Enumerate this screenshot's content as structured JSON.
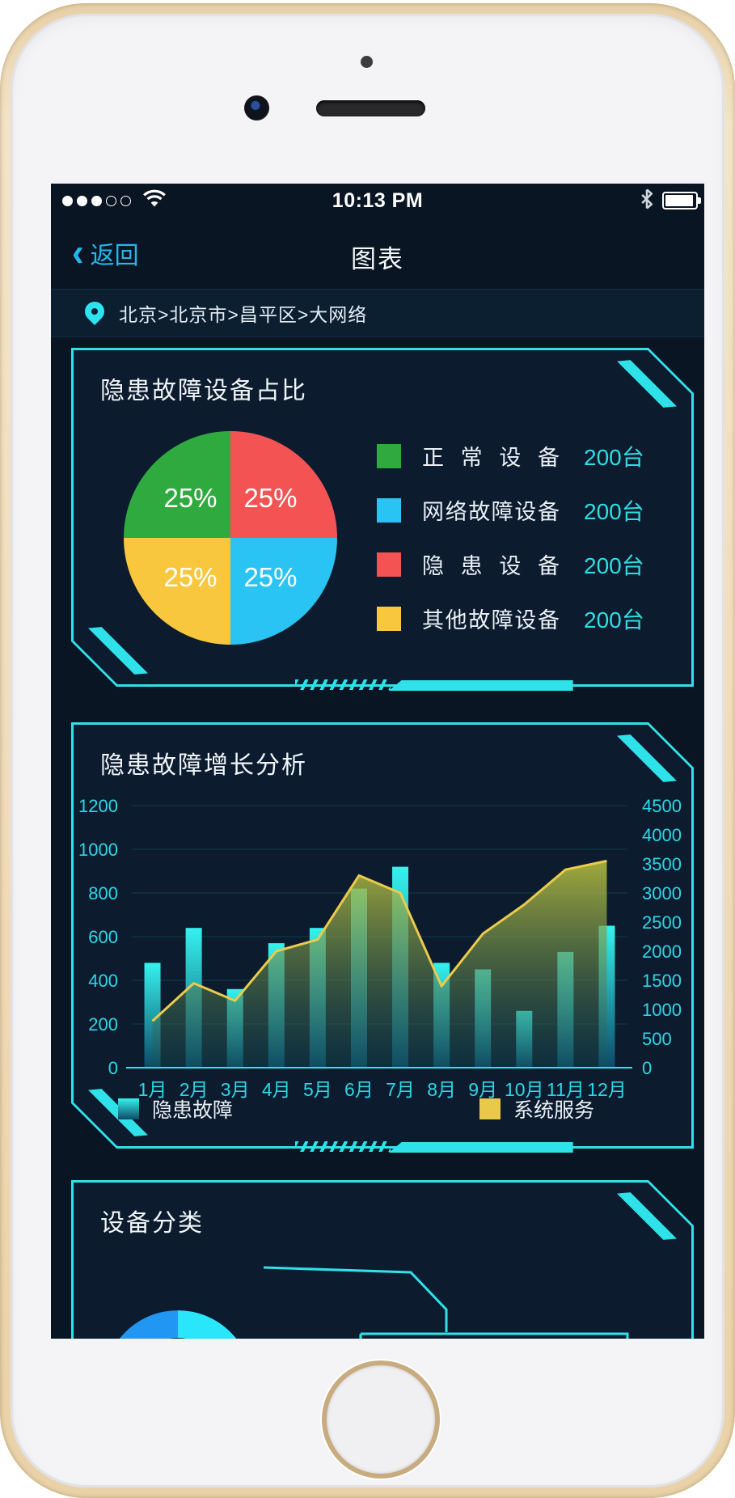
{
  "status_bar": {
    "time": "10:13 PM",
    "signal_icon": "cellular-signal-3-of-5-dots",
    "wifi_icon": "wifi-full",
    "bluetooth_icon": "bluetooth",
    "battery_icon": "battery-full"
  },
  "nav": {
    "back_label": "返回",
    "title": "图表"
  },
  "breadcrumb": {
    "pin_icon": "location-pin",
    "text": "北京>北京市>昌平区>大网络"
  },
  "accent_colors": {
    "frame_cyan": "#2fe2ea",
    "value_cyan": "#2bdfe4",
    "back_blue": "#23b7f0",
    "line_yellow": "#e9c84a"
  },
  "pie_card": {
    "title": "隐患故障设备占比",
    "legend": [
      {
        "label": "正常设备",
        "value": "200台",
        "color": "#2faa3e"
      },
      {
        "label": "网络故障设备",
        "value": "200台",
        "color": "#29c3f4"
      },
      {
        "label": "隐患设备",
        "value": "200台",
        "color": "#f45354"
      },
      {
        "label": "其他故障设备",
        "value": "200台",
        "color": "#f9c73e"
      }
    ]
  },
  "growth_card": {
    "title": "隐患故障增长分析",
    "legend": [
      {
        "label": "隐患故障",
        "swatch": "cyan-gradient"
      },
      {
        "label": "系统服务",
        "swatch": "#e9c84a",
        "color": "#e9c84a"
      }
    ]
  },
  "category_card": {
    "title": "设备分类"
  },
  "chart_data": [
    {
      "type": "pie",
      "title": "隐患故障设备占比",
      "slices_clockwise_from_top": [
        {
          "label": "隐患设备",
          "pct": 25,
          "pct_label": "25%",
          "color": "#f45354"
        },
        {
          "label": "网络故障设备",
          "pct": 25,
          "pct_label": "25%",
          "color": "#29c3f4"
        },
        {
          "label": "其他故障设备",
          "pct": 25,
          "pct_label": "25%",
          "color": "#f9c73e"
        },
        {
          "label": "正常设备",
          "pct": 25,
          "pct_label": "25%",
          "color": "#2faa3e"
        }
      ],
      "legend_values": [
        {
          "label": "正常设备",
          "value": "200台"
        },
        {
          "label": "网络故障设备",
          "value": "200台"
        },
        {
          "label": "隐患设备",
          "value": "200台"
        },
        {
          "label": "其他故障设备",
          "value": "200台"
        }
      ]
    },
    {
      "type": "combo-bar-area",
      "title": "隐患故障增长分析",
      "categories": [
        "1月",
        "2月",
        "3月",
        "4月",
        "5月",
        "6月",
        "7月",
        "8月",
        "9月",
        "10月",
        "11月",
        "12月"
      ],
      "series": [
        {
          "name": "隐患故障",
          "type": "bar",
          "axis": "left",
          "values": [
            480,
            640,
            360,
            570,
            640,
            820,
            920,
            480,
            450,
            260,
            530,
            650
          ]
        },
        {
          "name": "系统服务",
          "type": "area-line",
          "axis": "right",
          "values": [
            800,
            1450,
            1150,
            2000,
            2200,
            3300,
            3000,
            1400,
            2300,
            2800,
            3400,
            3550
          ]
        }
      ],
      "left_axis": {
        "min": 0,
        "max": 1200,
        "ticks": [
          0,
          200,
          400,
          600,
          800,
          1000,
          1200
        ]
      },
      "right_axis": {
        "min": 0,
        "max": 4500,
        "ticks": [
          0,
          500,
          1000,
          1500,
          2000,
          2500,
          3000,
          3500,
          4000,
          4500
        ]
      },
      "grid": "horizontal",
      "legend_position": "bottom"
    },
    {
      "type": "donut",
      "title": "设备分类",
      "segments": [
        {
          "color": "#2ae6fb",
          "fraction": 0.38
        },
        {
          "color": "#2196f3",
          "fraction": 0.62
        }
      ]
    }
  ]
}
